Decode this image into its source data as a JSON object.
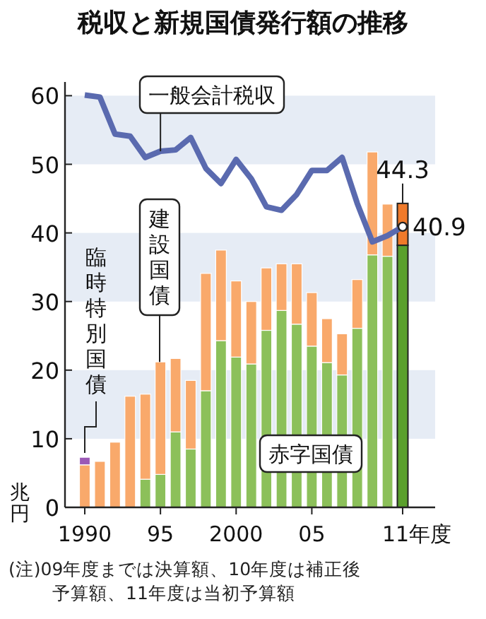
{
  "chart_data": {
    "type": "bar",
    "title": "税収と新規国債発行額の推移",
    "ylabel": "兆円",
    "stacked": true,
    "grid": false,
    "categories": [
      "1990",
      null,
      null,
      null,
      null,
      "95",
      null,
      null,
      null,
      null,
      "2000",
      null,
      null,
      null,
      null,
      "05",
      null,
      null,
      null,
      null,
      null,
      "11年度"
    ],
    "ylim": [
      0,
      62
    ],
    "yticks": [
      0,
      10,
      20,
      30,
      40,
      50,
      60
    ],
    "bands": [
      {
        "axis": "y",
        "from": 10,
        "to": 20,
        "color": "#e6ecf5"
      },
      {
        "axis": "y",
        "from": 30,
        "to": 40,
        "color": "#e6ecf5"
      },
      {
        "axis": "y",
        "from": 50,
        "to": 60,
        "color": "#e6ecf5"
      }
    ],
    "series": [
      {
        "name": "赤字国債",
        "colors": [
          null,
          null,
          null,
          null,
          "#8cc05a",
          "#8cc05a",
          "#8cc05a",
          "#8cc05a",
          "#8cc05a",
          "#8cc05a",
          "#8cc05a",
          "#8cc05a",
          "#8cc05a",
          "#8cc05a",
          "#8cc05a",
          "#8cc05a",
          "#8cc05a",
          "#8cc05a",
          "#8cc05a",
          "#8cc05a",
          "#8cc05a",
          "#5aa02c"
        ],
        "values": [
          null,
          null,
          null,
          null,
          4.1,
          4.8,
          11.0,
          8.5,
          17.0,
          24.3,
          21.9,
          20.9,
          25.8,
          28.7,
          26.7,
          23.5,
          21.1,
          19.3,
          26.1,
          36.8,
          36.6,
          38.2
        ]
      },
      {
        "name": "建設国債",
        "colors": [
          "#f9a96b",
          "#f9a96b",
          "#f9a96b",
          "#f9a96b",
          "#f9a96b",
          "#f9a96b",
          "#f9a96b",
          "#f9a96b",
          "#f9a96b",
          "#f9a96b",
          "#f9a96b",
          "#f9a96b",
          "#f9a96b",
          "#f9a96b",
          "#f9a96b",
          "#f9a96b",
          "#f9a96b",
          "#f9a96b",
          "#f9a96b",
          "#f9a96b",
          "#f9a96b",
          "#f07a2a"
        ],
        "values": [
          6.2,
          6.7,
          9.5,
          16.2,
          12.4,
          16.4,
          10.7,
          10.0,
          17.1,
          13.2,
          11.1,
          9.1,
          9.1,
          6.8,
          8.8,
          7.8,
          6.4,
          6.0,
          7.1,
          15.0,
          7.6,
          6.1
        ]
      },
      {
        "name": "臨時特別国債",
        "color": "#9b59b6",
        "values": [
          1.1,
          null,
          null,
          null,
          null,
          null,
          null,
          null,
          null,
          null,
          null,
          null,
          null,
          null,
          null,
          null,
          null,
          null,
          null,
          null,
          null,
          null
        ]
      },
      {
        "name": "一般会計税収",
        "type": "line",
        "color": "#5a6aaf",
        "values": [
          60.1,
          59.8,
          54.4,
          54.1,
          51.0,
          51.9,
          52.1,
          53.9,
          49.4,
          47.2,
          50.7,
          47.9,
          43.8,
          43.3,
          45.6,
          49.1,
          49.1,
          51.0,
          44.3,
          38.7,
          39.6,
          40.9
        ]
      }
    ],
    "annotations": [
      {
        "text": "44.3",
        "x": "11年度",
        "y": 44.3
      },
      {
        "text": "40.9",
        "x": "11年度",
        "y": 40.9
      },
      "(注)09年度までは決算額、10年度は補正後予算額、11年度は当初予算額"
    ]
  }
}
